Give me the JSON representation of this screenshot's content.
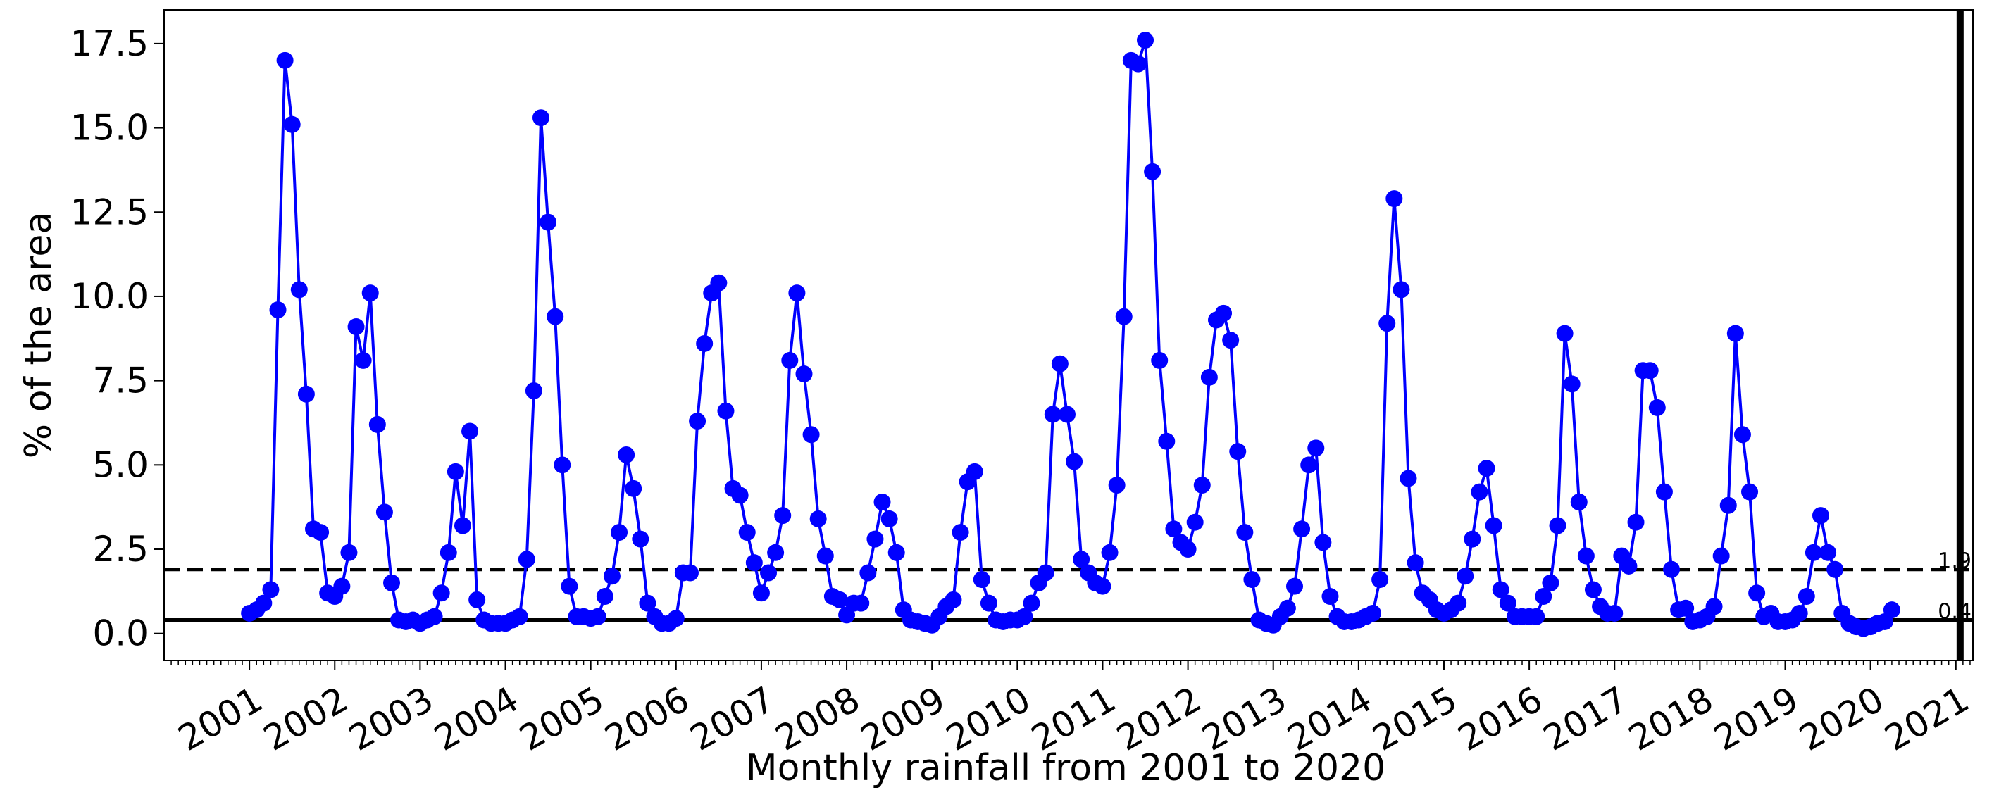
{
  "chart_data": {
    "type": "line",
    "title": "",
    "xlabel": "Monthly rainfall from 2001  to 2020",
    "ylabel": "% of the area",
    "xlim": [
      2000.0,
      2021.2
    ],
    "ylim": [
      -0.8,
      18.5
    ],
    "x_ticks": [
      "2001",
      "2002",
      "2003",
      "2004",
      "2005",
      "2006",
      "2007",
      "2008",
      "2009",
      "2010",
      "2011",
      "2012",
      "2013",
      "2014",
      "2015",
      "2016",
      "2017",
      "2018",
      "2019",
      "2020",
      "2021"
    ],
    "y_ticks": [
      "0.0",
      "2.5",
      "5.0",
      "7.5",
      "10.0",
      "12.5",
      "15.0",
      "17.5"
    ],
    "grid": false,
    "series": [
      {
        "color": "#0000ff",
        "marker": "circle",
        "x_start": "2001-01",
        "y": [
          0.6,
          0.7,
          0.9,
          1.3,
          9.6,
          17.0,
          15.1,
          10.2,
          7.1,
          3.1,
          3.0,
          1.2,
          1.1,
          1.4,
          2.4,
          9.1,
          8.1,
          10.1,
          6.2,
          3.6,
          1.5,
          0.4,
          0.35,
          0.4,
          0.3,
          0.4,
          0.5,
          1.2,
          2.4,
          4.8,
          3.2,
          6.0,
          1.0,
          0.4,
          0.3,
          0.3,
          0.3,
          0.4,
          0.5,
          2.2,
          7.2,
          15.3,
          12.2,
          9.4,
          5.0,
          1.4,
          0.5,
          0.5,
          0.45,
          0.5,
          1.1,
          1.7,
          3.0,
          5.3,
          4.3,
          2.8,
          0.9,
          0.5,
          0.3,
          0.3,
          0.45,
          1.8,
          1.8,
          6.3,
          8.6,
          10.1,
          10.4,
          6.6,
          4.3,
          4.1,
          3.0,
          2.1,
          1.2,
          1.8,
          2.4,
          3.5,
          8.1,
          10.1,
          7.7,
          5.9,
          3.4,
          2.3,
          1.1,
          1.0,
          0.55,
          0.9,
          0.9,
          1.8,
          2.8,
          3.9,
          3.4,
          2.4,
          0.7,
          0.4,
          0.35,
          0.3,
          0.25,
          0.5,
          0.8,
          1.0,
          3.0,
          4.5,
          4.8,
          1.6,
          0.9,
          0.4,
          0.35,
          0.4,
          0.4,
          0.5,
          0.9,
          1.5,
          1.8,
          6.5,
          8.0,
          6.5,
          5.1,
          2.2,
          1.8,
          1.5,
          1.4,
          2.4,
          4.4,
          9.4,
          17.0,
          16.9,
          17.6,
          13.7,
          8.1,
          5.7,
          3.1,
          2.7,
          2.5,
          3.3,
          4.4,
          7.6,
          9.3,
          9.5,
          8.7,
          5.4,
          3.0,
          1.6,
          0.4,
          0.3,
          0.25,
          0.5,
          0.75,
          1.4,
          3.1,
          5.0,
          5.5,
          2.7,
          1.1,
          0.5,
          0.35,
          0.35,
          0.4,
          0.5,
          0.6,
          1.6,
          9.2,
          12.9,
          10.2,
          4.6,
          2.1,
          1.2,
          1.0,
          0.7,
          0.6,
          0.7,
          0.9,
          1.7,
          2.8,
          4.2,
          4.9,
          3.2,
          1.3,
          0.9,
          0.5,
          0.5,
          0.5,
          0.5,
          1.1,
          1.5,
          3.2,
          8.9,
          7.4,
          3.9,
          2.3,
          1.3,
          0.8,
          0.6,
          0.6,
          2.3,
          2.0,
          3.3,
          7.8,
          7.8,
          6.7,
          4.2,
          1.9,
          0.7,
          0.75,
          0.35,
          0.4,
          0.5,
          0.8,
          2.3,
          3.8,
          8.9,
          5.9,
          4.2,
          1.2,
          0.5,
          0.6,
          0.35,
          0.35,
          0.4,
          0.6,
          1.1,
          2.4,
          3.5,
          2.4,
          1.9,
          0.6,
          0.3,
          0.2,
          0.15,
          0.2,
          0.3,
          0.35,
          0.7
        ]
      }
    ],
    "reference_lines": [
      {
        "y": 1.9,
        "style": "dashed",
        "label": "1.9"
      },
      {
        "y": 0.4,
        "style": "solid",
        "label": "0.4"
      }
    ],
    "vertical_line": {
      "x": 2021.05,
      "style": "solid-thick"
    }
  }
}
